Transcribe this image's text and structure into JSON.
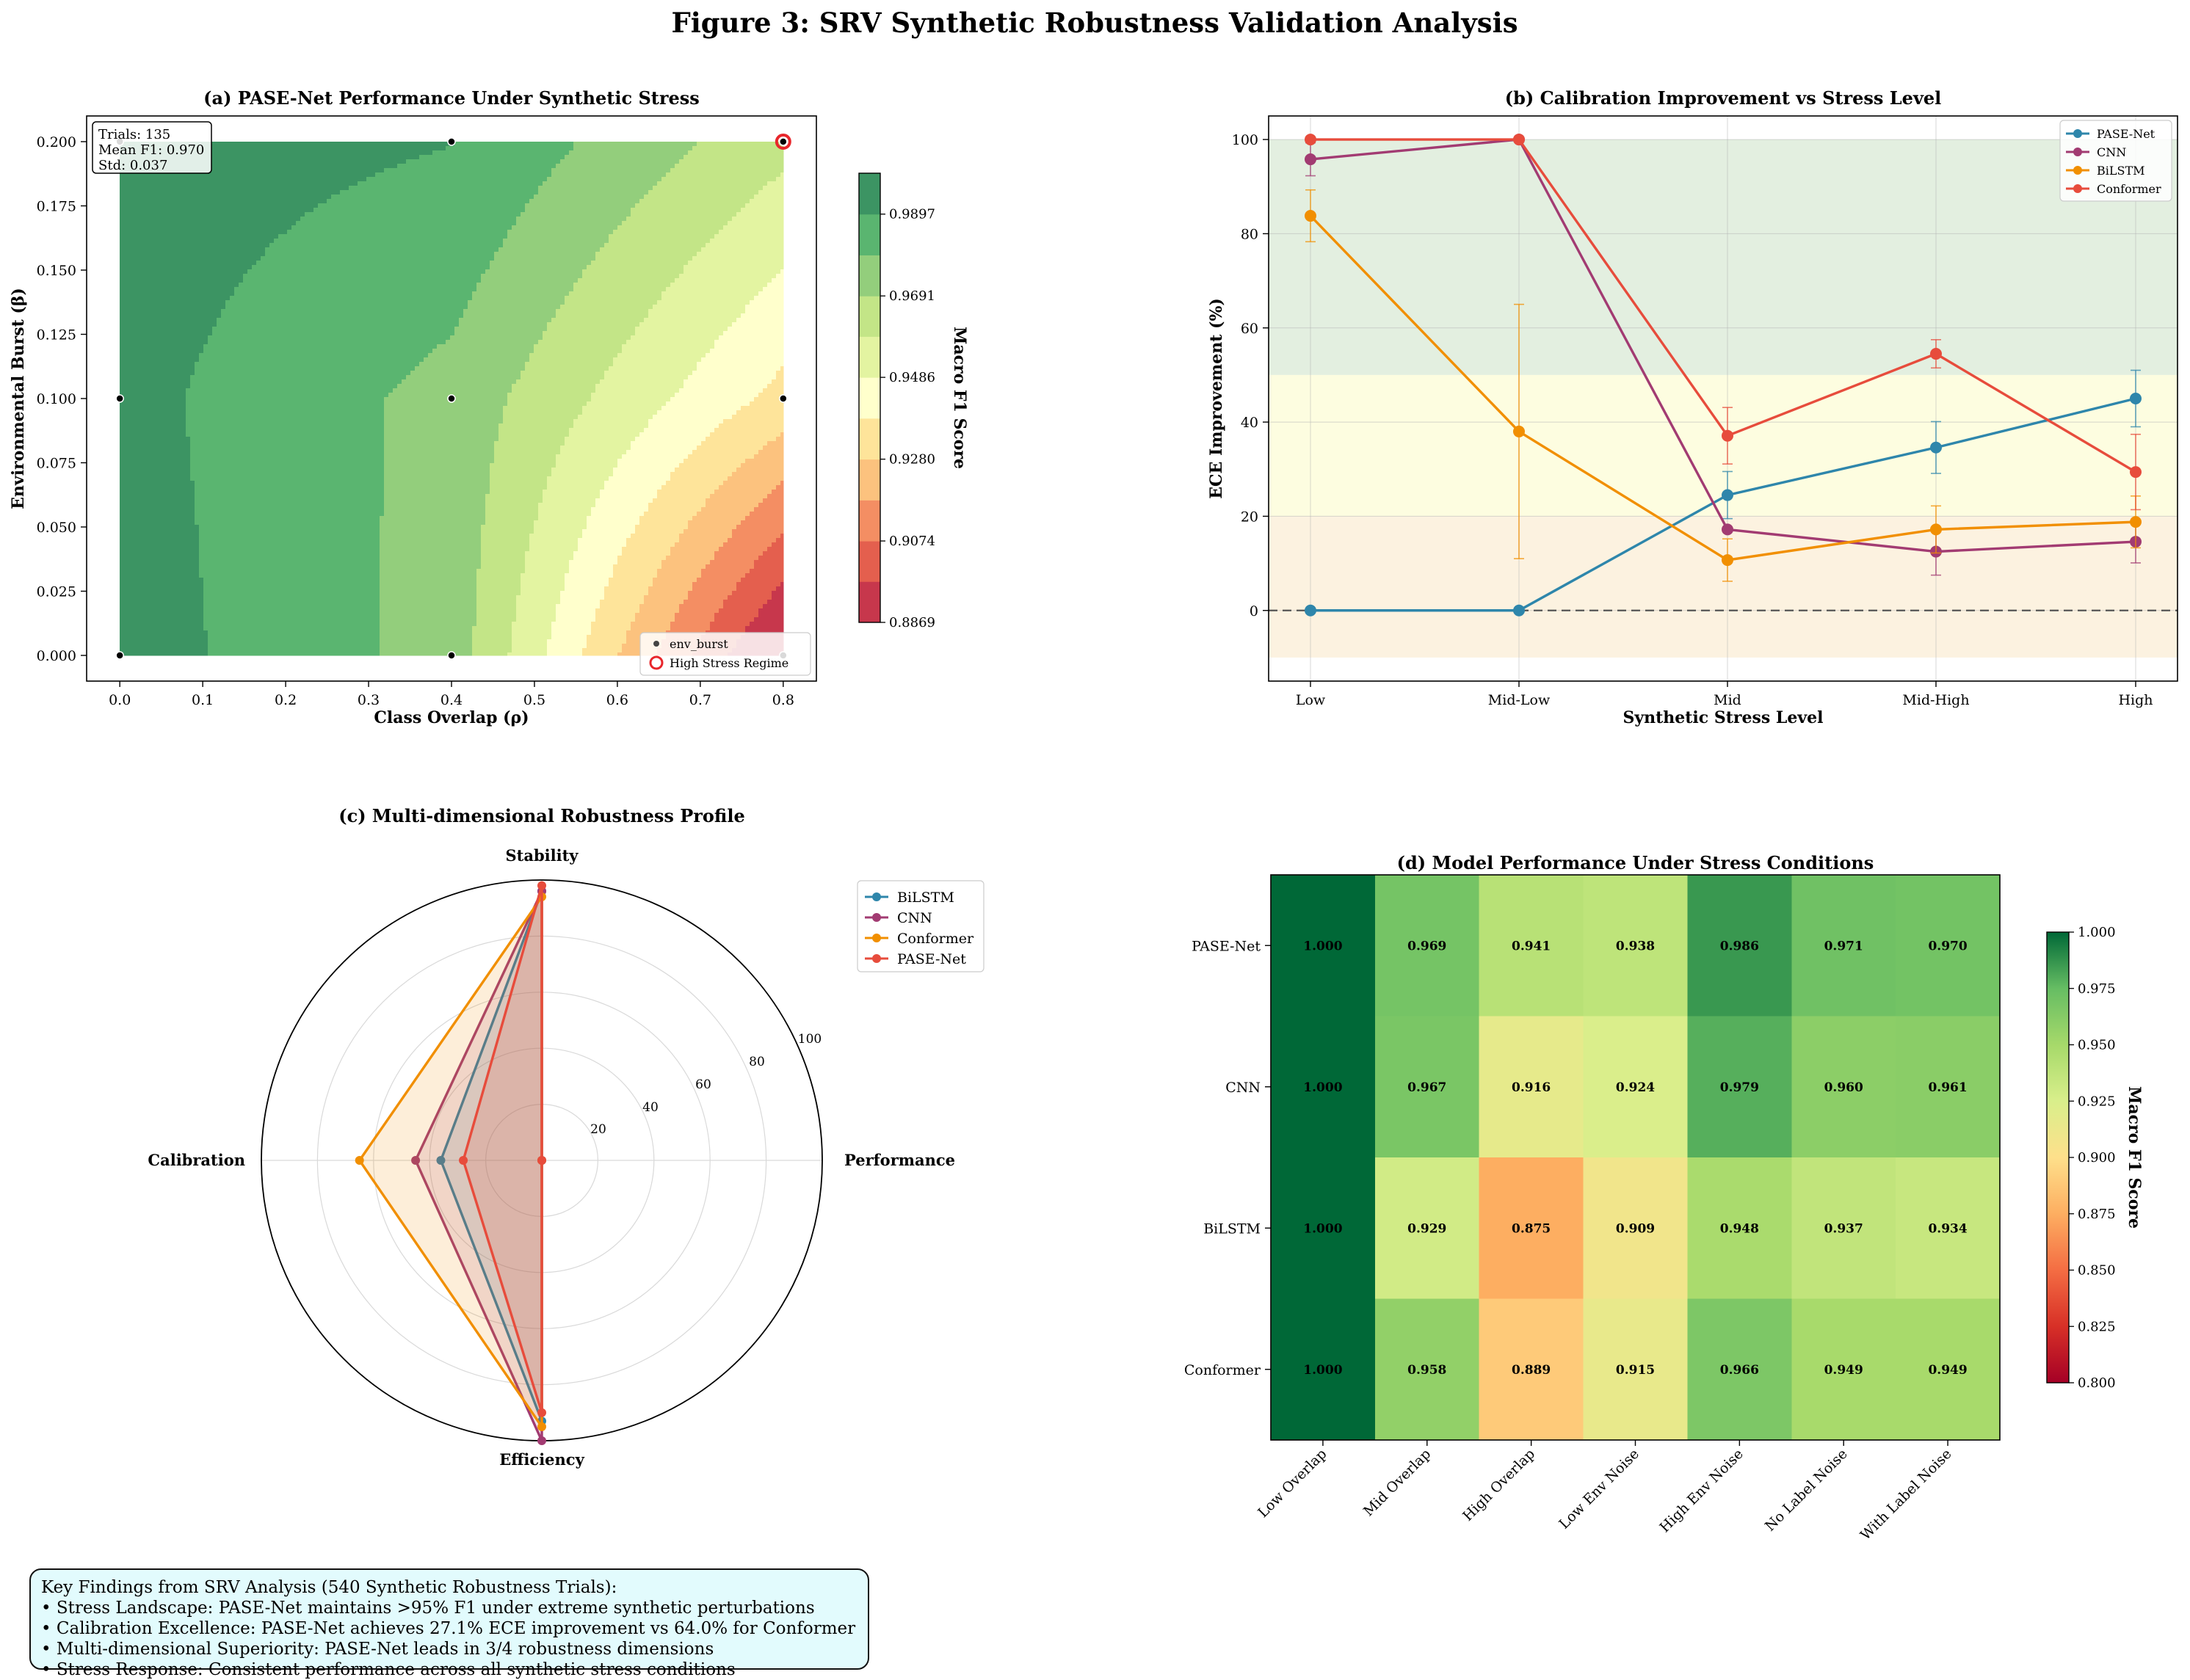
{
  "figure_title": "Figure 3: SRV Synthetic Robustness Validation Analysis",
  "findings": {
    "title": "Key Findings from SRV Analysis (540 Synthetic Robustness Trials):",
    "items": [
      "• Stress Landscape: PASE-Net maintains >95% F1 under extreme synthetic perturbations",
      "• Calibration Excellence: PASE-Net achieves 27.1% ECE improvement vs 64.0% for Conformer",
      "• Multi-dimensional Superiority: PASE-Net leads in 3/4 robustness dimensions",
      "• Stress Response: Consistent performance across all synthetic stress conditions"
    ]
  },
  "colors": {
    "pase": "#2e86ab",
    "cnn": "#a23b72",
    "bilstm": "#f18f01",
    "conformer": "#e74c3c",
    "contour_levels": [
      "#c7374c",
      "#e45f4e",
      "#f48e63",
      "#fcc27e",
      "#fee49a",
      "#ffffcc",
      "#e3f4a1",
      "#c3e587",
      "#93ce7c",
      "#5ab570",
      "#3c9463"
    ]
  },
  "chart_data": [
    {
      "type": "contour",
      "title": "(a) PASE-Net Performance Under Synthetic Stress",
      "xlabel": "Class Overlap (ρ)",
      "ylabel": "Environmental Burst (β)",
      "xlim": [
        -0.04,
        0.84
      ],
      "ylim": [
        -0.01,
        0.21
      ],
      "x_ticks": [
        "0.0",
        "0.1",
        "0.2",
        "0.3",
        "0.4",
        "0.5",
        "0.6",
        "0.7",
        "0.8"
      ],
      "y_ticks": [
        "0.000",
        "0.025",
        "0.050",
        "0.075",
        "0.100",
        "0.125",
        "0.150",
        "0.175",
        "0.200"
      ],
      "grid_x": [
        0.0,
        0.4,
        0.8
      ],
      "grid_y": [
        0.0,
        0.1,
        0.2
      ],
      "f1_grid": [
        [
          0.995,
          0.975,
          0.882
        ],
        [
          0.993,
          0.976,
          0.935
        ],
        [
          0.995,
          0.99,
          0.962
        ]
      ],
      "levels": [
        0.8869,
        0.8972,
        0.9074,
        0.9177,
        0.928,
        0.9383,
        0.9486,
        0.9589,
        0.9691,
        0.9794,
        0.9897,
        1.0
      ],
      "colorbar_label": "Macro F1 Score",
      "colorbar_ticks": [
        "0.8869",
        "0.9074",
        "0.9280",
        "0.9486",
        "0.9691",
        "0.9897"
      ],
      "stats": [
        "Trials: 135",
        "Mean F1: 0.970",
        "Std: 0.037"
      ],
      "points": [
        [
          0.0,
          0.0
        ],
        [
          0.4,
          0.0
        ],
        [
          0.8,
          0.0
        ],
        [
          0.0,
          0.1
        ],
        [
          0.4,
          0.1
        ],
        [
          0.8,
          0.1
        ],
        [
          0.0,
          0.2
        ],
        [
          0.4,
          0.2
        ],
        [
          0.8,
          0.2
        ]
      ],
      "highlight": [
        0.8,
        0.2
      ],
      "legend": [
        "env_burst",
        "High Stress Regime"
      ],
      "legend_position": "lower-right"
    },
    {
      "type": "line",
      "title": "(b) Calibration Improvement vs Stress Level",
      "xlabel": "Synthetic Stress Level",
      "ylabel": "ECE Improvement (%)",
      "categories": [
        "Low",
        "Mid-Low",
        "Mid",
        "Mid-High",
        "High"
      ],
      "ylim": [
        -15,
        105
      ],
      "y_ticks": [
        0,
        20,
        40,
        60,
        80,
        100
      ],
      "grid": true,
      "legend_position": "top-right",
      "bands": [
        [
          50,
          100,
          "#e3efe0"
        ],
        [
          20,
          50,
          "#fdfde0"
        ],
        [
          -10,
          20,
          "#fcf2e0"
        ]
      ],
      "series": [
        {
          "name": "PASE-Net",
          "color": "#2e86ab",
          "values": [
            0,
            0,
            24.5,
            34.6,
            45.0
          ],
          "err": [
            0,
            0,
            5,
            5.5,
            6
          ]
        },
        {
          "name": "CNN",
          "color": "#a23b72",
          "values": [
            95.8,
            100,
            17.2,
            12.5,
            14.6
          ],
          "err": [
            3.5,
            0,
            0,
            5,
            4.5
          ]
        },
        {
          "name": "BiLSTM",
          "color": "#f18f01",
          "values": [
            83.8,
            38.0,
            10.7,
            17.2,
            18.8
          ],
          "err": [
            5.5,
            27,
            4.5,
            5,
            5.5
          ]
        },
        {
          "name": "Conformer",
          "color": "#e74c3c",
          "values": [
            100,
            100,
            37.1,
            54.5,
            29.4
          ],
          "err": [
            0,
            0,
            6,
            3,
            8
          ]
        }
      ]
    },
    {
      "type": "radar",
      "title": "(c) Multi-dimensional Robustness Profile",
      "axes": [
        "Performance",
        "Stability",
        "Calibration",
        "Efficiency"
      ],
      "r_ticks": [
        "20",
        "40",
        "60",
        "80",
        "100"
      ],
      "rmax": 100,
      "legend_position": "top-right",
      "series": [
        {
          "name": "BiLSTM",
          "color": "#2e86ab",
          "values": [
            0,
            96,
            36,
            93
          ]
        },
        {
          "name": "CNN",
          "color": "#a23b72",
          "values": [
            0,
            96,
            45,
            100
          ]
        },
        {
          "name": "Conformer",
          "color": "#f18f01",
          "values": [
            0,
            94,
            65,
            95
          ]
        },
        {
          "name": "PASE-Net",
          "color": "#e74c3c",
          "values": [
            0,
            98,
            28,
            90
          ]
        }
      ]
    },
    {
      "type": "heatmap",
      "title": "(d) Model Performance Under Stress Conditions",
      "rows": [
        "PASE-Net",
        "CNN",
        "BiLSTM",
        "Conformer"
      ],
      "columns": [
        "Low Overlap",
        "Mid Overlap",
        "High Overlap",
        "Low Env Noise",
        "High Env Noise",
        "No Label Noise",
        "With Label Noise"
      ],
      "values": [
        [
          1.0,
          0.969,
          0.941,
          0.938,
          0.986,
          0.971,
          0.97
        ],
        [
          1.0,
          0.967,
          0.916,
          0.924,
          0.979,
          0.96,
          0.961
        ],
        [
          1.0,
          0.929,
          0.875,
          0.909,
          0.948,
          0.937,
          0.934
        ],
        [
          1.0,
          0.958,
          0.889,
          0.915,
          0.966,
          0.949,
          0.949
        ]
      ],
      "labels": [
        [
          "1.000",
          "0.969",
          "0.941",
          "0.938",
          "0.986",
          "0.971",
          "0.970"
        ],
        [
          "1.000",
          "0.967",
          "0.916",
          "0.924",
          "0.979",
          "0.960",
          "0.961"
        ],
        [
          "1.000",
          "0.929",
          "0.875",
          "0.909",
          "0.948",
          "0.937",
          "0.934"
        ],
        [
          "1.000",
          "0.958",
          "0.889",
          "0.915",
          "0.966",
          "0.949",
          "0.949"
        ]
      ],
      "vmin": 0.8,
      "vmax": 1.0,
      "colorbar_label": "Macro F1 Score",
      "colorbar_ticks": [
        "0.800",
        "0.825",
        "0.850",
        "0.875",
        "0.900",
        "0.925",
        "0.950",
        "0.975",
        "1.000"
      ]
    }
  ]
}
